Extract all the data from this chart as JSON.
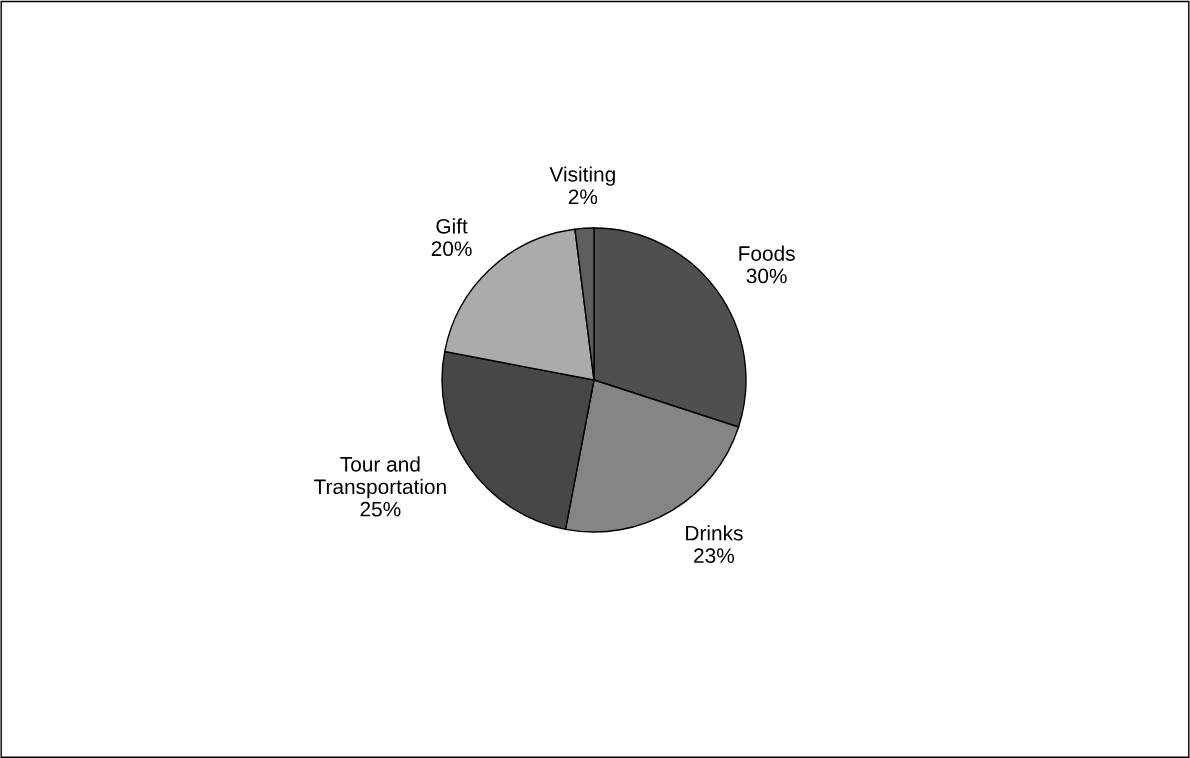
{
  "chart_data": {
    "type": "pie",
    "categories": [
      "Foods",
      "Drinks",
      "Tour and\nTransportation",
      "Gift",
      "Visiting"
    ],
    "values": [
      30,
      23,
      25,
      20,
      2
    ],
    "value_labels": [
      "30%",
      "23%",
      "25%",
      "20%",
      "2%"
    ],
    "colors": [
      "#4f4f4f",
      "#858585",
      "#474747",
      "#ababab",
      "#5e5e5e"
    ],
    "legend": false
  }
}
